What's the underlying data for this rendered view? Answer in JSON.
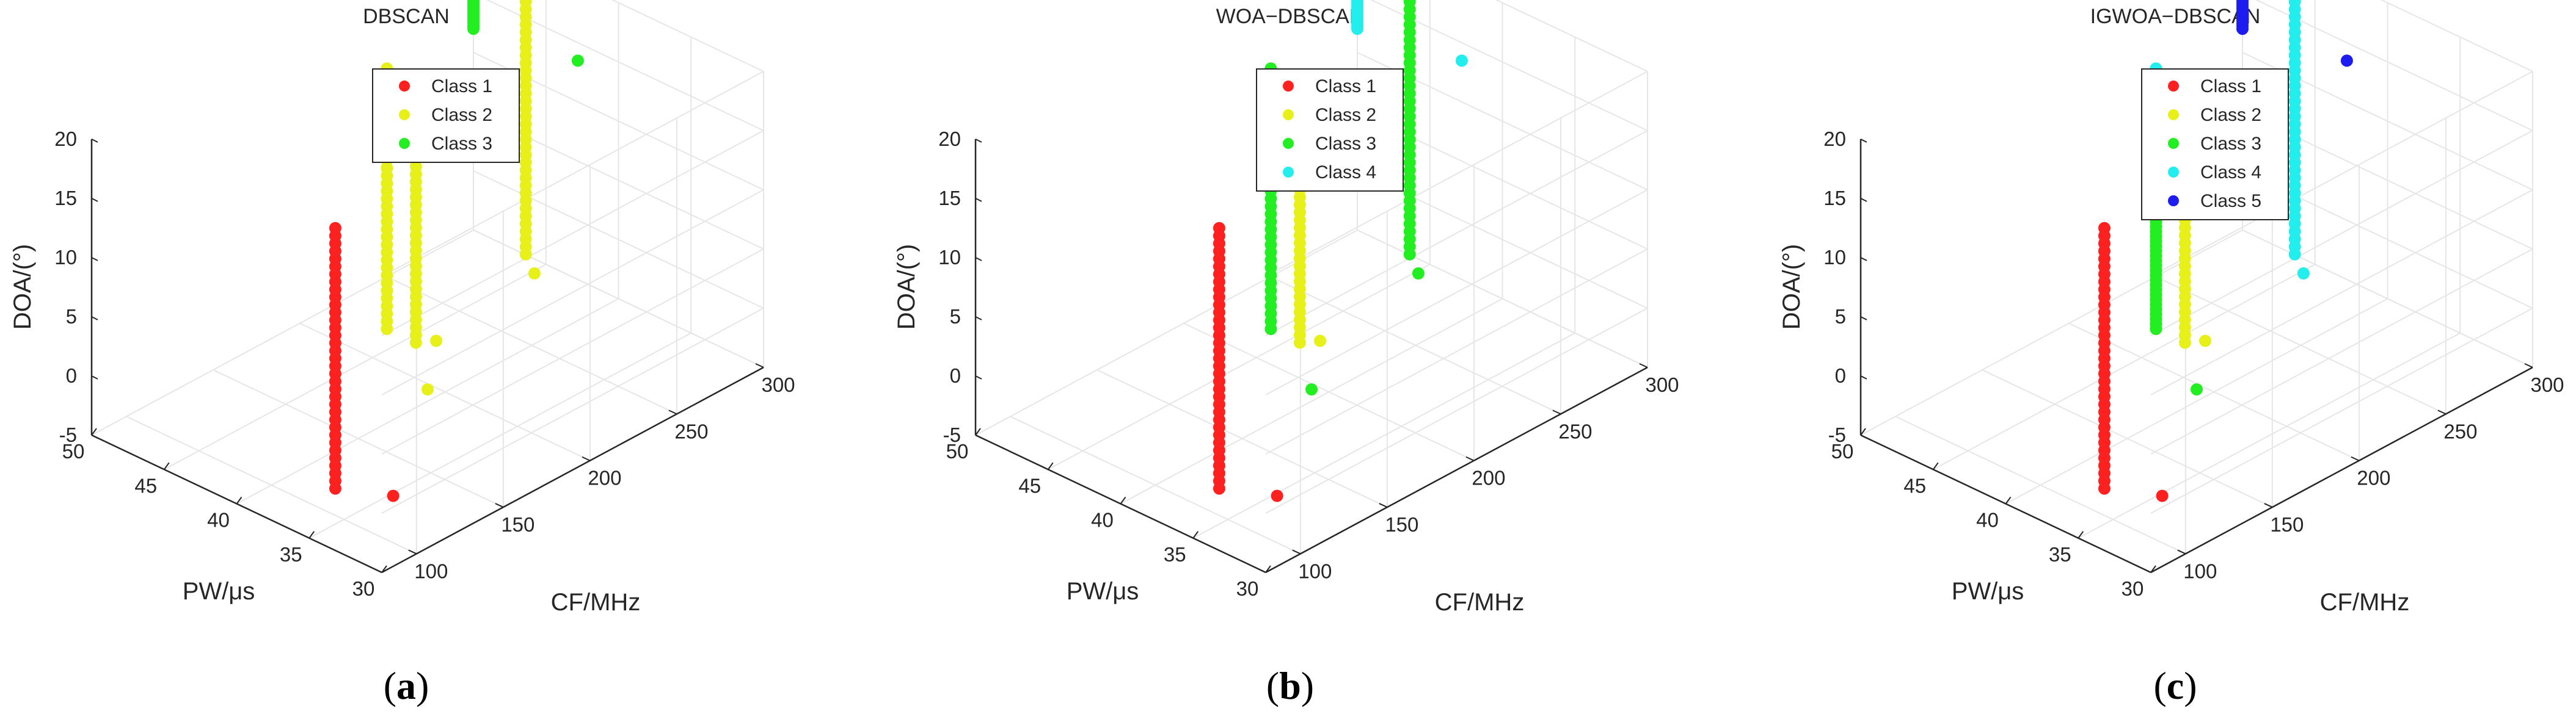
{
  "chart_data": [
    {
      "type": "scatter",
      "panel_label": "a",
      "title": "DBSCAN",
      "xlabel": "PW/μs",
      "ylabel": "CF/MHz",
      "zlabel": "DOA/(°)",
      "xlim": [
        30,
        50
      ],
      "ylim": [
        80,
        300
      ],
      "zlim": [
        -5,
        20
      ],
      "xticks": [
        50,
        45,
        40,
        35,
        30
      ],
      "yticks": [
        100,
        150,
        200,
        250,
        300
      ],
      "zticks": [
        -5,
        0,
        5,
        10,
        15,
        20
      ],
      "legend_position": "top-center",
      "series": [
        {
          "name": "Class 1",
          "color": "#ff2020",
          "lines": [
            {
              "pw": 35,
              "cf": 95,
              "doa": [
                -2,
                20
              ]
            }
          ],
          "outliers": [
            {
              "pw": 34,
              "cf": 120,
              "doa": -4
            }
          ]
        },
        {
          "name": "Class 2",
          "color": "#e8f01a",
          "lines": [
            {
              "pw": 44,
              "cf": 200,
              "doa": [
                -2,
                20
              ]
            },
            {
              "pw": 42,
              "cf": 200,
              "doa": [
                -2,
                20
              ]
            },
            {
              "pw": 44,
              "cf": 280,
              "doa": [
                -2,
                20
              ]
            }
          ],
          "outliers": [
            {
              "pw": 40,
              "cf": 190,
              "doa": -4
            },
            {
              "pw": 43,
              "cf": 220,
              "doa": -4
            },
            {
              "pw": 44,
              "cf": 285,
              "doa": -4
            }
          ]
        },
        {
          "name": "Class 3",
          "color": "#22ee22",
          "lines": [
            {
              "pw": 50,
              "cf": 300,
              "doa": [
                12,
                20
              ]
            }
          ],
          "outliers": [
            {
              "pw": 44,
              "cf": 310,
              "doa": 12
            }
          ]
        }
      ]
    },
    {
      "type": "scatter",
      "panel_label": "b",
      "title": "WOA−DBSCAN",
      "xlabel": "PW/μs",
      "ylabel": "CF/MHz",
      "zlabel": "DOA/(°)",
      "xlim": [
        30,
        50
      ],
      "ylim": [
        80,
        300
      ],
      "zlim": [
        -5,
        20
      ],
      "xticks": [
        50,
        45,
        40,
        35,
        30
      ],
      "yticks": [
        100,
        150,
        200,
        250,
        300
      ],
      "zticks": [
        -5,
        0,
        5,
        10,
        15,
        20
      ],
      "legend_position": "top-center",
      "series": [
        {
          "name": "Class 1",
          "color": "#ff2020",
          "lines": [
            {
              "pw": 35,
              "cf": 95,
              "doa": [
                -2,
                20
              ]
            }
          ],
          "outliers": [
            {
              "pw": 34,
              "cf": 120,
              "doa": -4
            }
          ]
        },
        {
          "name": "Class 2",
          "color": "#e8f01a",
          "lines": [
            {
              "pw": 42,
              "cf": 200,
              "doa": [
                -2,
                20
              ]
            }
          ],
          "outliers": [
            {
              "pw": 43,
              "cf": 220,
              "doa": -4
            }
          ]
        },
        {
          "name": "Class 3",
          "color": "#22ee22",
          "lines": [
            {
              "pw": 44,
              "cf": 200,
              "doa": [
                -2,
                20
              ]
            },
            {
              "pw": 44,
              "cf": 280,
              "doa": [
                -2,
                20
              ]
            }
          ],
          "outliers": [
            {
              "pw": 40,
              "cf": 190,
              "doa": -4
            },
            {
              "pw": 44,
              "cf": 285,
              "doa": -4
            }
          ]
        },
        {
          "name": "Class 4",
          "color": "#22eeee",
          "lines": [
            {
              "pw": 50,
              "cf": 300,
              "doa": [
                12,
                20
              ]
            }
          ],
          "outliers": [
            {
              "pw": 44,
              "cf": 310,
              "doa": 12
            }
          ]
        }
      ]
    },
    {
      "type": "scatter",
      "panel_label": "c",
      "title": "IGWOA−DBSCAN",
      "xlabel": "PW/μs",
      "ylabel": "CF/MHz",
      "zlabel": "DOA/(°)",
      "xlim": [
        30,
        50
      ],
      "ylim": [
        80,
        300
      ],
      "zlim": [
        -5,
        20
      ],
      "xticks": [
        50,
        45,
        40,
        35,
        30
      ],
      "yticks": [
        100,
        150,
        200,
        250,
        300
      ],
      "zticks": [
        -5,
        0,
        5,
        10,
        15,
        20
      ],
      "legend_position": "top-center",
      "series": [
        {
          "name": "Class 1",
          "color": "#ff2020",
          "lines": [
            {
              "pw": 35,
              "cf": 95,
              "doa": [
                -2,
                20
              ]
            }
          ],
          "outliers": [
            {
              "pw": 34,
              "cf": 120,
              "doa": -4
            }
          ]
        },
        {
          "name": "Class 2",
          "color": "#e8f01a",
          "lines": [
            {
              "pw": 42,
              "cf": 200,
              "doa": [
                -2,
                20
              ]
            }
          ],
          "outliers": [
            {
              "pw": 43,
              "cf": 220,
              "doa": -4
            }
          ]
        },
        {
          "name": "Class 3",
          "color": "#22ee22",
          "lines": [
            {
              "pw": 44,
              "cf": 200,
              "doa": [
                -2,
                12
              ]
            }
          ],
          "outliers": [
            {
              "pw": 40,
              "cf": 190,
              "doa": -4
            }
          ]
        },
        {
          "name": "Class 4",
          "color": "#22eeee",
          "lines": [
            {
              "pw": 44,
              "cf": 200,
              "doa": [
                12,
                20
              ]
            },
            {
              "pw": 44,
              "cf": 280,
              "doa": [
                -2,
                20
              ]
            }
          ],
          "outliers": [
            {
              "pw": 44,
              "cf": 285,
              "doa": -4
            }
          ]
        },
        {
          "name": "Class 5",
          "color": "#1c1cf0",
          "lines": [
            {
              "pw": 50,
              "cf": 300,
              "doa": [
                12,
                20
              ]
            }
          ],
          "outliers": [
            {
              "pw": 44,
              "cf": 310,
              "doa": 12
            }
          ]
        }
      ]
    }
  ]
}
